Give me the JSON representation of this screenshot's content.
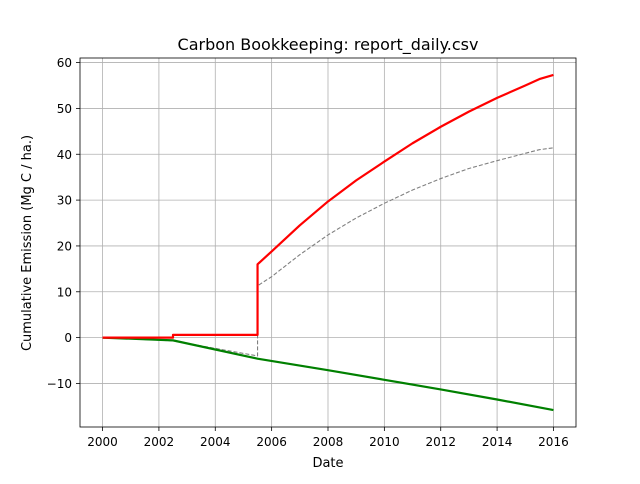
{
  "chart_data": {
    "type": "line",
    "title": "Carbon Bookkeeping: report_daily.csv",
    "xlabel": "Date",
    "ylabel": "Cumulative Emission (Mg C / ha.)",
    "xlim": [
      1999.2,
      2016.8
    ],
    "ylim": [
      -19.5,
      61.0
    ],
    "xticks": [
      2000,
      2002,
      2004,
      2006,
      2008,
      2010,
      2012,
      2014,
      2016
    ],
    "yticks": [
      -10,
      0,
      10,
      20,
      30,
      40,
      50,
      60
    ],
    "grid": true,
    "series": [
      {
        "color": "#ff0000",
        "style": "solid",
        "points": [
          [
            2000.0,
            0.0
          ],
          [
            2002.5,
            0.0
          ],
          [
            2002.5,
            0.6
          ],
          [
            2005.5,
            0.6
          ],
          [
            2005.5,
            16.0
          ],
          [
            2006.0,
            18.8
          ],
          [
            2007.0,
            24.5
          ],
          [
            2008.0,
            29.7
          ],
          [
            2009.0,
            34.3
          ],
          [
            2010.0,
            38.4
          ],
          [
            2011.0,
            42.4
          ],
          [
            2012.0,
            46.0
          ],
          [
            2013.0,
            49.3
          ],
          [
            2014.0,
            52.3
          ],
          [
            2015.0,
            55.0
          ],
          [
            2015.5,
            56.4
          ],
          [
            2016.0,
            57.3
          ]
        ]
      },
      {
        "color": "#808080",
        "style": "dashed",
        "points": [
          [
            2000.0,
            0.0
          ],
          [
            2002.5,
            -0.7
          ],
          [
            2005.5,
            -4.0
          ],
          [
            2005.5,
            11.3
          ],
          [
            2006.0,
            13.3
          ],
          [
            2007.0,
            18.1
          ],
          [
            2008.0,
            22.4
          ],
          [
            2009.0,
            26.1
          ],
          [
            2010.0,
            29.3
          ],
          [
            2011.0,
            32.2
          ],
          [
            2012.0,
            34.7
          ],
          [
            2013.0,
            36.9
          ],
          [
            2014.0,
            38.6
          ],
          [
            2015.0,
            40.2
          ],
          [
            2015.5,
            41.0
          ],
          [
            2016.0,
            41.4
          ]
        ]
      },
      {
        "color": "#008000",
        "style": "solid",
        "points": [
          [
            2000.0,
            0.0
          ],
          [
            2002.5,
            -0.6
          ],
          [
            2005.5,
            -4.6
          ],
          [
            2008.0,
            -7.1
          ],
          [
            2010.0,
            -9.2
          ],
          [
            2012.0,
            -11.3
          ],
          [
            2014.0,
            -13.5
          ],
          [
            2016.0,
            -15.8
          ]
        ]
      }
    ]
  }
}
